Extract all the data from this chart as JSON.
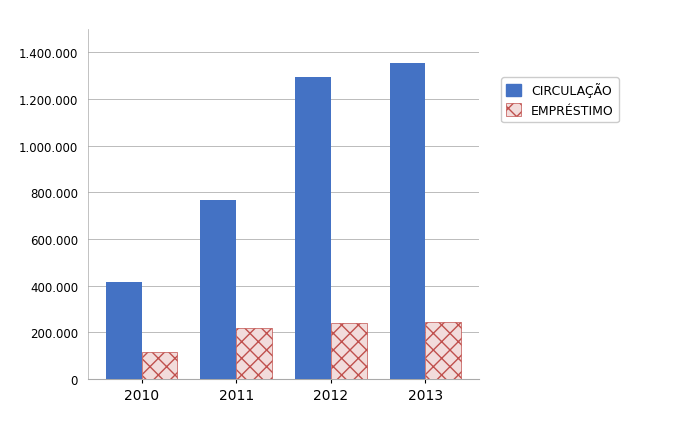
{
  "years": [
    "2010",
    "2011",
    "2012",
    "2013"
  ],
  "circulacao": [
    415000,
    765000,
    1295000,
    1355000
  ],
  "emprestimo": [
    115000,
    218000,
    242000,
    243000
  ],
  "bar_color_circulacao": "#4472C4",
  "bar_color_emprestimo_face": "#F2DCDB",
  "bar_color_emprestimo_hatch": "#C0504D",
  "ylim": [
    0,
    1500000
  ],
  "yticks": [
    0,
    200000,
    400000,
    600000,
    800000,
    1000000,
    1200000,
    1400000
  ],
  "ytick_labels": [
    "0",
    "200.000",
    "400.000",
    "600.000",
    "800.000",
    "1.000.000",
    "1.200.000",
    "1.400.000"
  ],
  "legend_circulacao": "CIRCULAÇÃO",
  "legend_emprestimo": "EMPRÉSTIMO",
  "background_color": "#FFFFFF",
  "bar_width": 0.38,
  "grid_color": "#BBBBBB"
}
